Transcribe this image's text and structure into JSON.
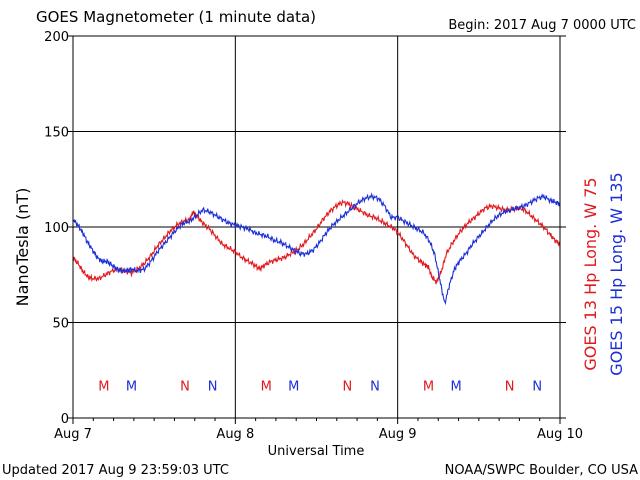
{
  "header": {
    "title": "GOES Magnetometer (1 minute data)",
    "begin": "Begin:  2017 Aug 7 0000 UTC"
  },
  "footer": {
    "updated": "Updated 2017 Aug  9 23:59:03 UTC",
    "source": "NOAA/SWPC Boulder, CO USA"
  },
  "colors": {
    "goes13": "#e0191e",
    "goes15": "#1b2fd6",
    "axis": "#000000"
  },
  "chart_data": {
    "type": "line",
    "xlabel": "Universal Time",
    "ylabel": "NanoTesla (nT)",
    "ylim": [
      0,
      200
    ],
    "yticks": [
      0,
      50,
      100,
      150,
      200
    ],
    "xlim_days": [
      0,
      3
    ],
    "xticks": [
      {
        "pos": 0,
        "label": "Aug 7"
      },
      {
        "pos": 1,
        "label": "Aug 8"
      },
      {
        "pos": 2,
        "label": "Aug 9"
      },
      {
        "pos": 3,
        "label": "Aug 10"
      }
    ],
    "grid": true,
    "legend": [
      {
        "label": "GOES 13 Hp  Long. W 75",
        "color": "#e0191e"
      },
      {
        "label": "GOES 15 Hp  Long. W 135",
        "color": "#1b2fd6"
      }
    ],
    "markers": [
      {
        "label": "M",
        "x": 0.19,
        "series": "GOES 13"
      },
      {
        "label": "M",
        "x": 0.36,
        "series": "GOES 15"
      },
      {
        "label": "N",
        "x": 0.69,
        "series": "GOES 13"
      },
      {
        "label": "N",
        "x": 0.86,
        "series": "GOES 15"
      },
      {
        "label": "M",
        "x": 1.19,
        "series": "GOES 13"
      },
      {
        "label": "M",
        "x": 1.36,
        "series": "GOES 15"
      },
      {
        "label": "N",
        "x": 1.69,
        "series": "GOES 13"
      },
      {
        "label": "N",
        "x": 1.86,
        "series": "GOES 15"
      },
      {
        "label": "M",
        "x": 2.19,
        "series": "GOES 13"
      },
      {
        "label": "M",
        "x": 2.36,
        "series": "GOES 15"
      },
      {
        "label": "N",
        "x": 2.69,
        "series": "GOES 13"
      },
      {
        "label": "N",
        "x": 2.86,
        "series": "GOES 15"
      }
    ],
    "markers_y": 17,
    "series": [
      {
        "name": "GOES 13 Hp",
        "color": "#e0191e",
        "x": [
          0.0,
          0.03,
          0.06,
          0.09,
          0.12,
          0.16,
          0.2,
          0.24,
          0.28,
          0.32,
          0.36,
          0.4,
          0.44,
          0.48,
          0.52,
          0.56,
          0.6,
          0.64,
          0.68,
          0.72,
          0.74,
          0.77,
          0.8,
          0.84,
          0.88,
          0.92,
          0.96,
          1.0,
          1.04,
          1.08,
          1.12,
          1.15,
          1.18,
          1.22,
          1.26,
          1.3,
          1.34,
          1.38,
          1.42,
          1.46,
          1.5,
          1.54,
          1.58,
          1.62,
          1.66,
          1.7,
          1.74,
          1.78,
          1.82,
          1.86,
          1.9,
          1.94,
          1.98,
          2.02,
          2.06,
          2.1,
          2.14,
          2.17,
          2.19,
          2.21,
          2.24,
          2.27,
          2.3,
          2.34,
          2.38,
          2.42,
          2.46,
          2.5,
          2.54,
          2.58,
          2.62,
          2.66,
          2.7,
          2.74,
          2.78,
          2.82,
          2.86,
          2.9,
          2.94,
          2.97,
          3.0
        ],
        "values": [
          84,
          81,
          77,
          74,
          73,
          73,
          75,
          77,
          78,
          77,
          76,
          78,
          81,
          85,
          90,
          94,
          98,
          101,
          103,
          104,
          108,
          105,
          102,
          99,
          95,
          91,
          89,
          87,
          84,
          82,
          80,
          78,
          80,
          82,
          83,
          84,
          86,
          88,
          91,
          95,
          99,
          104,
          108,
          111,
          113,
          112,
          110,
          108,
          106,
          105,
          103,
          101,
          99,
          95,
          90,
          85,
          82,
          80,
          79,
          74,
          71,
          77,
          86,
          92,
          97,
          101,
          104,
          107,
          110,
          111,
          110,
          109,
          109,
          110,
          109,
          106,
          103,
          100,
          96,
          93,
          91
        ]
      },
      {
        "name": "GOES 15 Hp",
        "color": "#1b2fd6",
        "x": [
          0.0,
          0.03,
          0.06,
          0.09,
          0.12,
          0.15,
          0.18,
          0.21,
          0.24,
          0.27,
          0.3,
          0.33,
          0.36,
          0.4,
          0.44,
          0.48,
          0.52,
          0.56,
          0.6,
          0.64,
          0.68,
          0.72,
          0.76,
          0.8,
          0.84,
          0.88,
          0.92,
          0.96,
          1.0,
          1.04,
          1.08,
          1.12,
          1.16,
          1.2,
          1.24,
          1.28,
          1.32,
          1.36,
          1.4,
          1.44,
          1.48,
          1.52,
          1.56,
          1.6,
          1.64,
          1.68,
          1.72,
          1.76,
          1.8,
          1.84,
          1.88,
          1.92,
          1.96,
          2.0,
          2.04,
          2.08,
          2.12,
          2.16,
          2.2,
          2.23,
          2.26,
          2.29,
          2.32,
          2.35,
          2.38,
          2.42,
          2.46,
          2.5,
          2.54,
          2.58,
          2.62,
          2.66,
          2.7,
          2.74,
          2.78,
          2.82,
          2.86,
          2.9,
          2.94,
          2.97,
          3.0
        ],
        "values": [
          104,
          101,
          97,
          92,
          88,
          84,
          82,
          82,
          80,
          78,
          77,
          77,
          78,
          77,
          78,
          82,
          87,
          91,
          95,
          99,
          102,
          103,
          106,
          109,
          108,
          106,
          104,
          102,
          101,
          100,
          99,
          97,
          96,
          95,
          93,
          92,
          90,
          88,
          86,
          86,
          88,
          92,
          97,
          101,
          104,
          107,
          110,
          113,
          115,
          116,
          115,
          111,
          105,
          105,
          103,
          101,
          99,
          97,
          92,
          85,
          72,
          60,
          70,
          78,
          82,
          86,
          91,
          95,
          99,
          103,
          106,
          108,
          109,
          110,
          111,
          113,
          115,
          116,
          114,
          113,
          112
        ]
      }
    ]
  }
}
